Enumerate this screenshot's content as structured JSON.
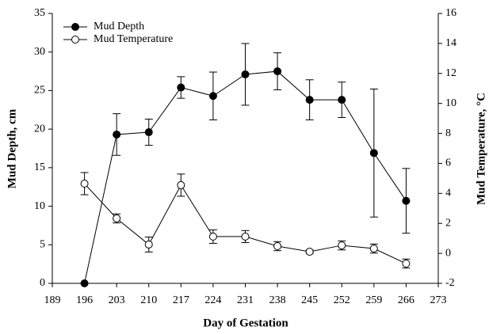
{
  "chart_data": {
    "type": "line",
    "x_label": "Day of Gestation",
    "y_label": "Mud Depth, cm",
    "y2_label": "Mud Temperature, °C",
    "x": [
      196,
      203,
      210,
      217,
      224,
      231,
      238,
      245,
      252,
      259,
      266
    ],
    "xlim": [
      189,
      273
    ],
    "xticks": [
      189,
      196,
      203,
      210,
      217,
      224,
      231,
      238,
      245,
      252,
      259,
      266,
      273
    ],
    "ylim": [
      0,
      35
    ],
    "yticks": [
      0,
      5,
      10,
      15,
      20,
      25,
      30,
      35
    ],
    "y2lim": [
      -2,
      16
    ],
    "y2ticks": [
      -2,
      0,
      2,
      4,
      6,
      8,
      10,
      12,
      14,
      16
    ],
    "legend": "top-left",
    "series": [
      {
        "name": "Mud Depth",
        "color": "#000000",
        "marker_fill": "#000000",
        "values": [
          0,
          19.3,
          19.6,
          25.4,
          24.3,
          27.1,
          27.5,
          23.8,
          23.8,
          16.9,
          10.7
        ],
        "errors": [
          null,
          2.7,
          1.7,
          1.4,
          3.1,
          4.0,
          2.4,
          2.6,
          2.3,
          8.3,
          4.2
        ]
      },
      {
        "name": "Mud Temperature",
        "color": "#000000",
        "marker_fill": "#ffffff",
        "axis": "y2",
        "values": [
          4.65,
          2.33,
          0.59,
          4.55,
          1.12,
          1.12,
          0.48,
          0.11,
          0.53,
          0.32,
          -0.68
        ],
        "errors": [
          0.74,
          0.3,
          0.5,
          0.74,
          0.45,
          0.4,
          0.3,
          0.1,
          0.3,
          0.3,
          0.3
        ]
      }
    ]
  }
}
